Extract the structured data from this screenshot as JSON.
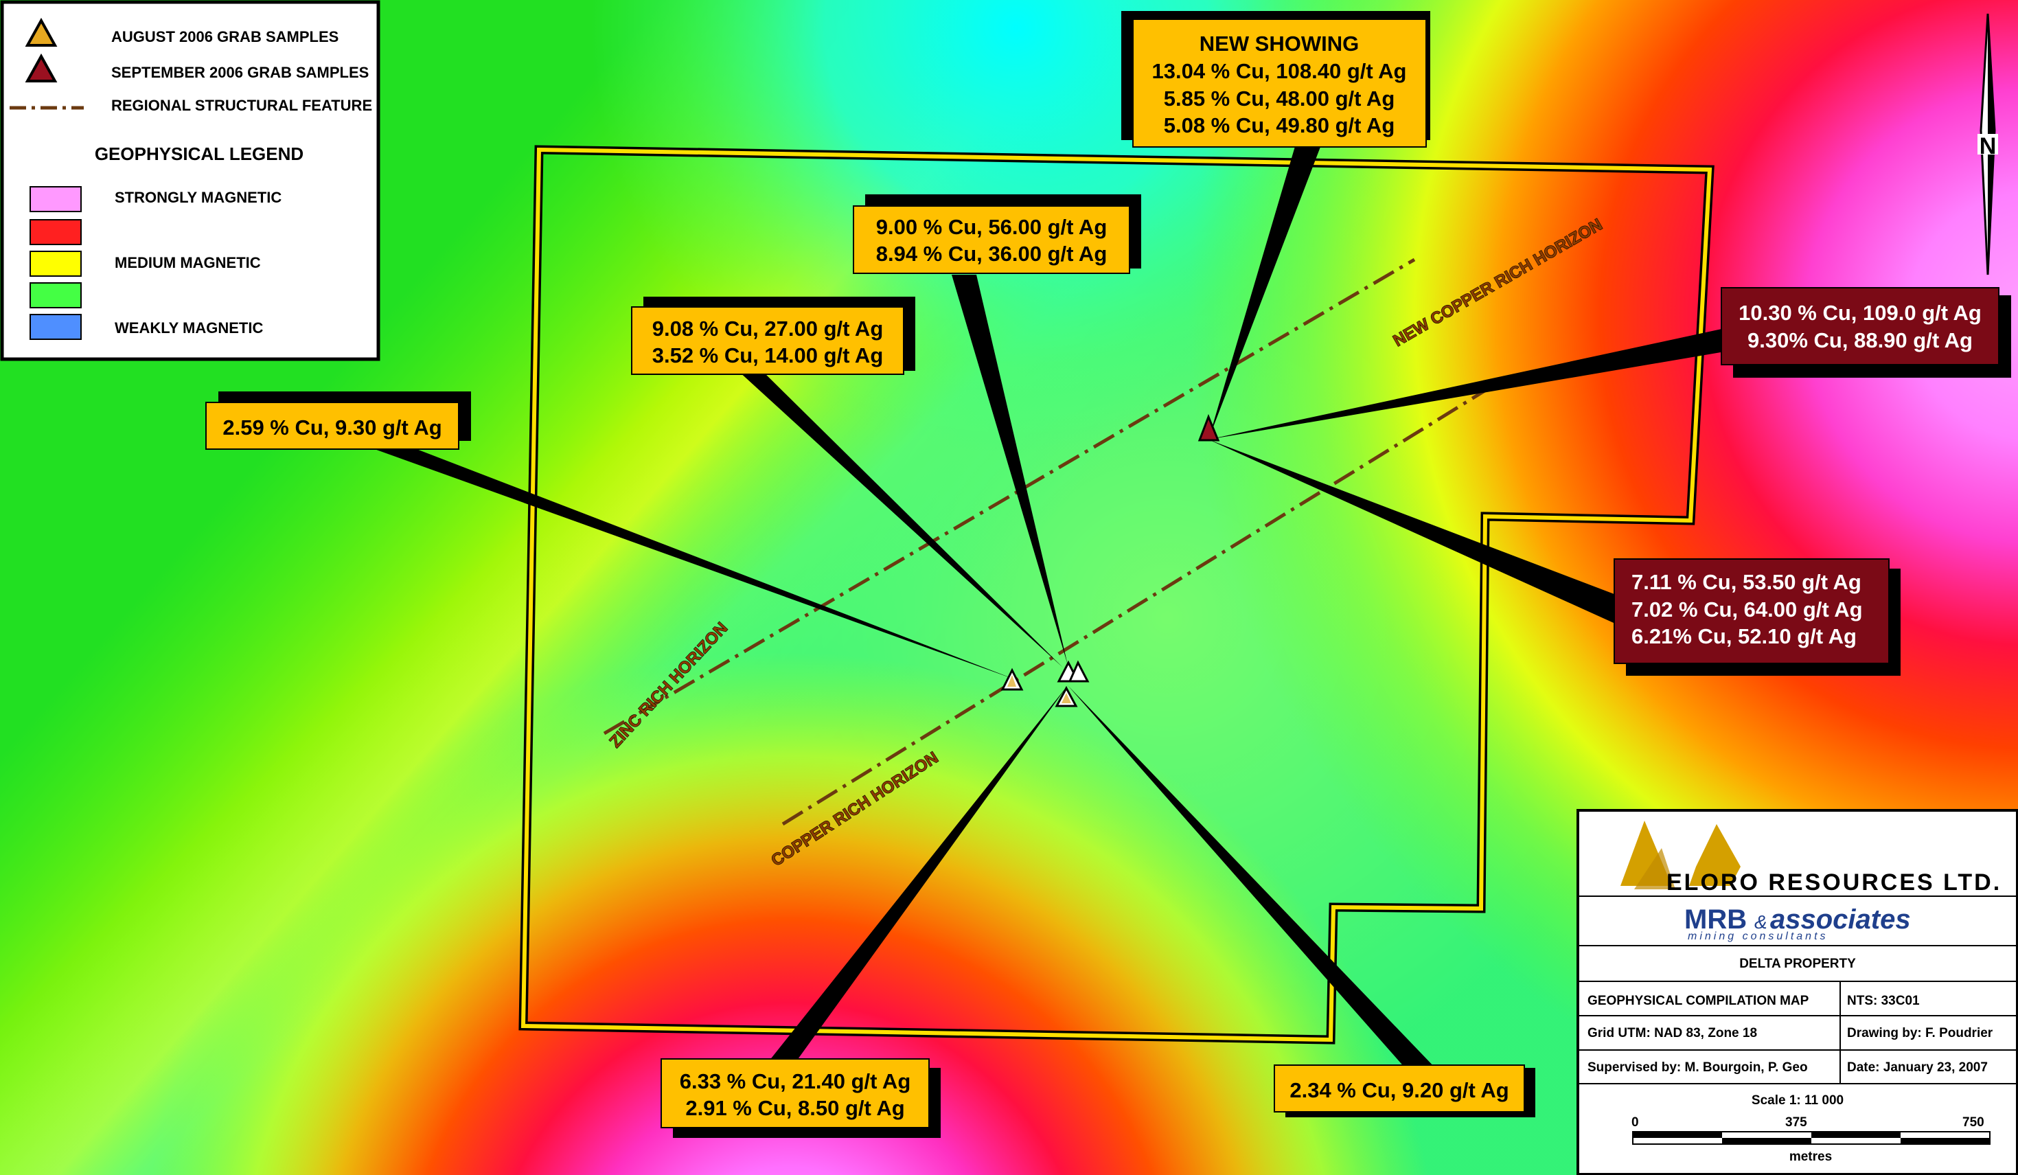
{
  "legend": {
    "symbols": [
      {
        "label": "AUGUST 2006 GRAB SAMPLES",
        "icon": "triangle-yellow-icon"
      },
      {
        "label": "SEPTEMBER 2006 GRAB SAMPLES",
        "icon": "triangle-red-icon"
      },
      {
        "label": "REGIONAL STRUCTURAL FEATURE",
        "icon": "dash-dot-line-icon"
      }
    ],
    "geo_title": "GEOPHYSICAL LEGEND",
    "swatches": [
      {
        "color": "#ff99ff",
        "label": "STRONGLY MAGNETIC"
      },
      {
        "color": "#ff2020",
        "label": ""
      },
      {
        "color": "#ffff00",
        "label": "MEDIUM MAGNETIC"
      },
      {
        "color": "#44ff44",
        "label": ""
      },
      {
        "color": "#4f8fff",
        "label": "WEAKLY MAGNETIC"
      }
    ]
  },
  "callouts": {
    "new_showing": {
      "title": "NEW SHOWING",
      "lines": [
        "13.04 % Cu, 108.40 g/t Ag",
        "5.85 % Cu, 48.00 g/t Ag",
        "5.08 % Cu, 49.80 g/t Ag"
      ]
    },
    "c_top_mid": {
      "lines": [
        "9.00 % Cu, 56.00 g/t Ag",
        "8.94 % Cu, 36.00 g/t Ag"
      ]
    },
    "c_upper_left": {
      "lines": [
        "9.08 % Cu, 27.00 g/t Ag",
        "3.52 % Cu, 14.00 g/t Ag"
      ]
    },
    "c_left": {
      "lines": [
        "2.59 % Cu, 9.30 g/t Ag"
      ]
    },
    "c_right_top": {
      "lines": [
        "10.30 % Cu, 109.0 g/t Ag",
        "9.30% Cu, 88.90 g/t Ag"
      ]
    },
    "c_right_mid": {
      "lines": [
        "7.11 % Cu, 53.50 g/t Ag",
        "7.02 % Cu, 64.00 g/t Ag",
        "6.21% Cu, 52.10 g/t Ag"
      ]
    },
    "c_bottom_left": {
      "lines": [
        "6.33 % Cu, 21.40 g/t Ag",
        "2.91 % Cu, 8.50 g/t Ag"
      ]
    },
    "c_bottom_right": {
      "lines": [
        "2.34 % Cu, 9.20 g/t Ag"
      ]
    }
  },
  "horizons": {
    "new_copper": "NEW COPPER RICH HORIZON",
    "zinc": "ZINC RICH HORIZON",
    "copper": "COPPER RICH HORIZON"
  },
  "north_label": "N",
  "title_block": {
    "company": "ELORO RESOURCES LTD.",
    "consultant": "MRB",
    "consultant_amp": "&",
    "consultant_word": "associates",
    "consultant_tag": "mining consultants",
    "property": "DELTA PROPERTY",
    "map_title": "GEOPHYSICAL COMPILATION MAP",
    "nts": "NTS:  33C01",
    "grid": "Grid UTM:  NAD 83,  Zone 18",
    "drawing_by": "Drawing by: F. Poudrier",
    "supervised": "Supervised by: M. Bourgoin, P. Geo",
    "date": "Date: January 23, 2007",
    "scale": "Scale 1: 11 000",
    "scale_ticks": [
      "0",
      "375",
      "750"
    ],
    "scale_unit": "metres"
  },
  "colors": {
    "callout_yellow": "#ffc000",
    "callout_dark": "#7b0a16",
    "sept_marker": "#9b1020"
  }
}
